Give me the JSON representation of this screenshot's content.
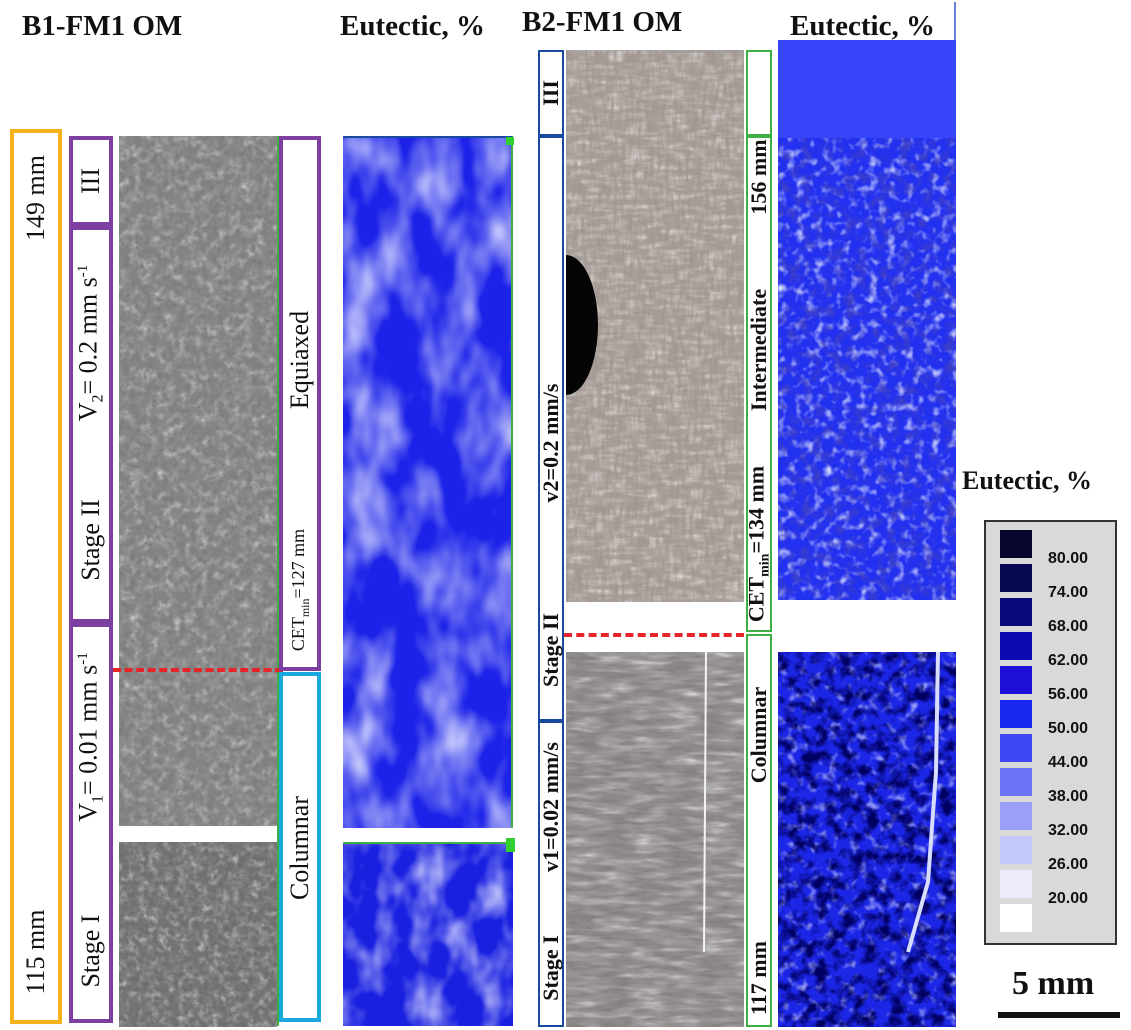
{
  "left_panel": {
    "om_title": "B1-FM1   OM",
    "eutectic_title": "Eutectic, %",
    "height_top": "149 mm",
    "height_bottom": "115 mm",
    "stage_III": "III",
    "stage_II_label": "Stage II",
    "stage_II_velocity": "V",
    "stage_II_velocity_sub": "2",
    "stage_II_velocity_value": "= 0.2 mm s",
    "stage_I_label": "Stage I",
    "stage_I_velocity": "V",
    "stage_I_velocity_sub": "1",
    "stage_I_velocity_value": "= 0.01 mm s",
    "velocity_exp": "-1",
    "equiaxed": "Equiaxed",
    "cet_prefix": "CET",
    "cet_sub": "min",
    "cet_value": "=127 mm",
    "columnar": "Columnar"
  },
  "right_panel": {
    "om_title": "B2-FM1  OM",
    "eutectic_title": "Eutectic, %",
    "stage_III": "III",
    "stage_II_velocity": "v2=0.2 mm/s",
    "stage_II_label": "Stage II",
    "stage_I_velocity": "v1=0.02 mm/s",
    "stage_I_label": "Stage I",
    "top_height": "156 mm",
    "intermediate": "Intermediate",
    "cet_prefix": "CET",
    "cet_sub": "min",
    "cet_value": "=134 mm",
    "columnar": "Columnar",
    "bottom_height": "117 mm"
  },
  "legend": {
    "title": "Eutectic, %",
    "entries": [
      {
        "label": "80.00",
        "color": "#06062e"
      },
      {
        "label": "74.00",
        "color": "#080850"
      },
      {
        "label": "68.00",
        "color": "#09097a"
      },
      {
        "label": "62.00",
        "color": "#0a0ab0"
      },
      {
        "label": "56.00",
        "color": "#1d0fd8"
      },
      {
        "label": "50.00",
        "color": "#1a28f0"
      },
      {
        "label": "44.00",
        "color": "#3d48f2"
      },
      {
        "label": "38.00",
        "color": "#6a74f4"
      },
      {
        "label": "32.00",
        "color": "#9aa0f6"
      },
      {
        "label": "26.00",
        "color": "#c4c8f9"
      },
      {
        "label": "20.00",
        "color": "#ececfd"
      }
    ],
    "last_color": "#ffffff"
  },
  "scale_bar": {
    "label": "5 mm"
  },
  "colors": {
    "orange": "#f5b21b",
    "purple": "#7d3fa0",
    "cyan": "#1aa7dc",
    "navy": "#1a4aa0",
    "green": "#3cb043",
    "dash_red": "#e6242a"
  }
}
